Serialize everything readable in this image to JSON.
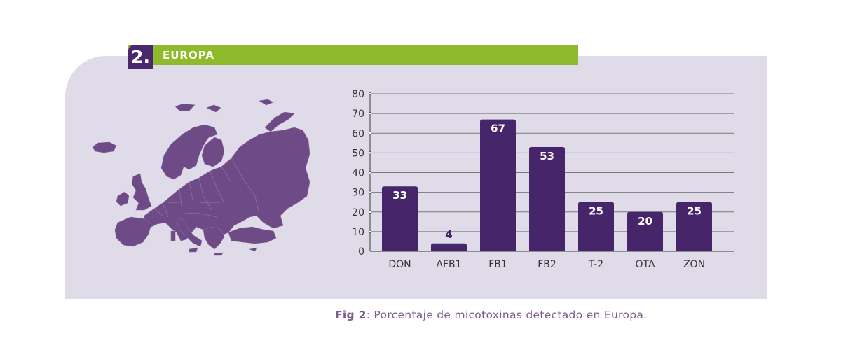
{
  "section": {
    "number": "2.",
    "title": "EUROPA"
  },
  "colors": {
    "bar": "#46256b",
    "map": "#6e4a86",
    "header_green": "#8fba2b",
    "panel": "#e0dbe8"
  },
  "map": {
    "icon": "europe-map-icon"
  },
  "caption": {
    "prefix": "Fig 2",
    "text": ": Porcentaje de micotoxinas detectado en Europa."
  },
  "chart_data": {
    "type": "bar",
    "categories": [
      "DON",
      "AFB1",
      "FB1",
      "FB2",
      "T-2",
      "OTA",
      "ZON"
    ],
    "values": [
      33,
      4,
      67,
      53,
      25,
      20,
      25
    ],
    "data_labels": [
      "33",
      "4",
      "67",
      "53",
      "25",
      "20",
      "25"
    ],
    "ylim": [
      0,
      80
    ],
    "yticks": [
      0,
      10,
      20,
      30,
      40,
      50,
      60,
      70,
      80
    ],
    "grid": true,
    "title": "",
    "xlabel": "",
    "ylabel": ""
  }
}
